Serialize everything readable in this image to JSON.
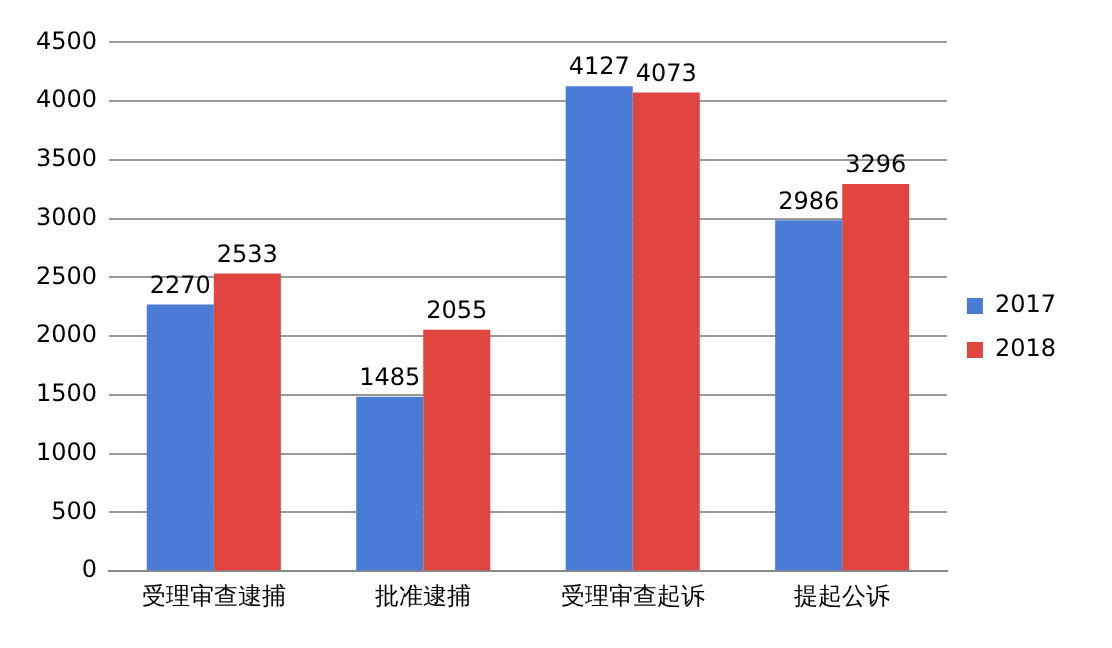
{
  "chart_data": {
    "type": "bar",
    "categories": [
      "受理审查逮捕",
      "批准逮捕",
      "受理审查起诉",
      "提起公诉"
    ],
    "series": [
      {
        "name": "2017",
        "color": "#4a7bd6",
        "values": [
          2270,
          1485,
          4127,
          2986
        ]
      },
      {
        "name": "2018",
        "color": "#e0453f",
        "values": [
          2533,
          2055,
          4073,
          3296
        ]
      }
    ],
    "ylim": [
      0,
      4500
    ],
    "yticks": [
      0,
      500,
      1000,
      1500,
      2000,
      2500,
      3000,
      3500,
      4000,
      4500
    ],
    "grid": "y",
    "legend": "right",
    "data_labels": true
  }
}
